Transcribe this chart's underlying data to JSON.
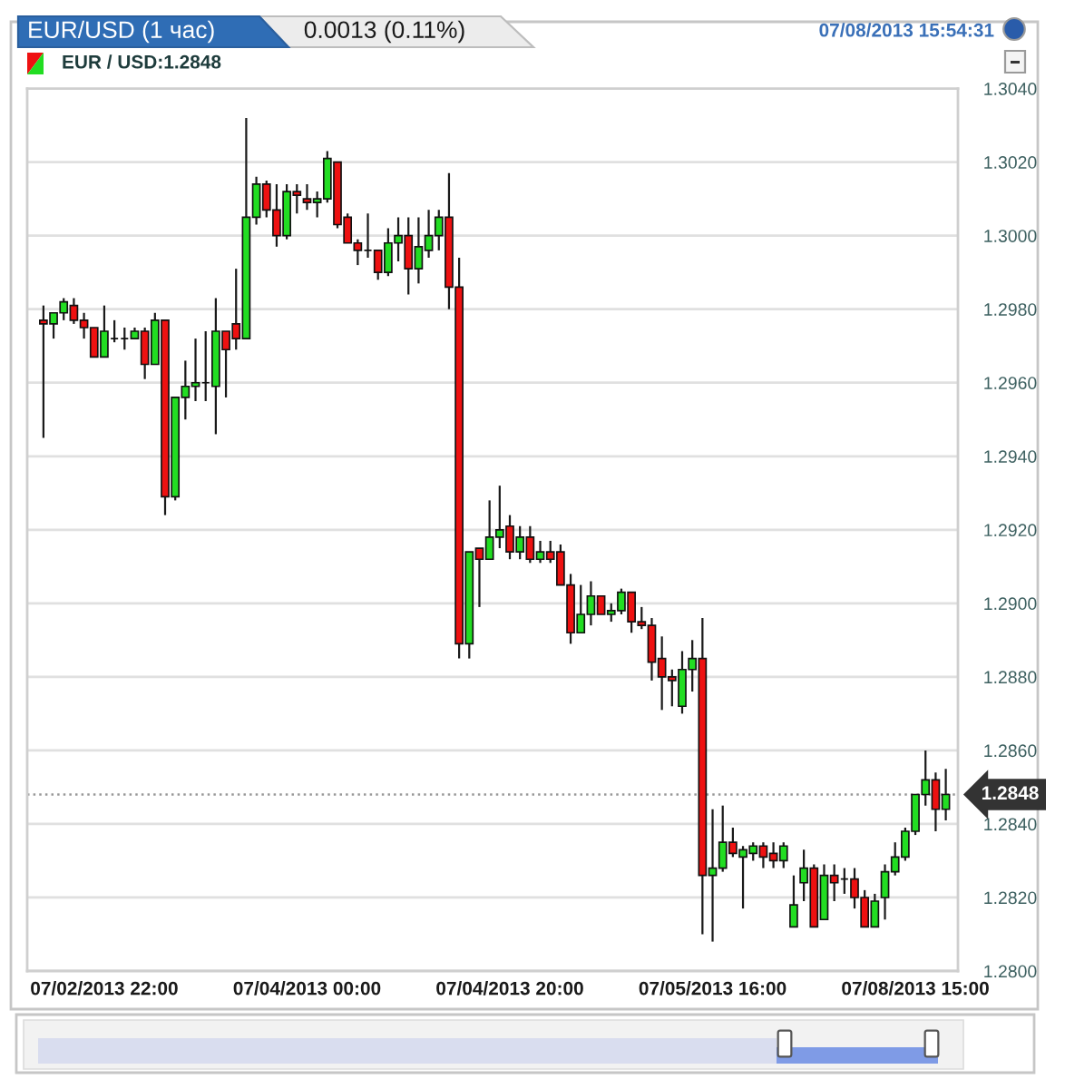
{
  "chart_data": {
    "type": "candlestick",
    "title": "EUR/USD (1 час)",
    "annotations": [
      "0.0013 (0.11%)",
      "07/08/2013 15:54:31",
      "EUR / USD:1.2848"
    ],
    "categories": [
      null,
      null,
      null,
      null,
      null,
      null,
      "07/02/2013 22:00",
      null,
      null,
      null,
      null,
      null,
      null,
      null,
      null,
      null,
      null,
      null,
      null,
      null,
      null,
      null,
      null,
      null,
      null,
      null,
      "07/04/2013 00:00",
      null,
      null,
      null,
      null,
      null,
      null,
      null,
      null,
      null,
      null,
      null,
      null,
      null,
      null,
      null,
      null,
      null,
      null,
      null,
      "07/04/2013 20:00",
      null,
      null,
      null,
      null,
      null,
      null,
      null,
      null,
      null,
      null,
      null,
      null,
      null,
      null,
      null,
      null,
      null,
      null,
      null,
      "07/05/2013 16:00",
      null,
      null,
      null,
      null,
      null,
      null,
      null,
      null,
      null,
      null,
      null,
      null,
      null,
      null,
      null,
      null,
      null,
      null,
      null,
      "07/08/2013 15:00",
      null,
      null,
      null
    ],
    "ohlc": [
      [
        1.2977,
        1.2981,
        1.2945,
        1.2976
      ],
      [
        1.2976,
        1.2979,
        1.2972,
        1.2979
      ],
      [
        1.2979,
        1.2983,
        1.2977,
        1.2982
      ],
      [
        1.2981,
        1.2983,
        1.2976,
        1.2977
      ],
      [
        1.2977,
        1.2979,
        1.2972,
        1.2975
      ],
      [
        1.2975,
        1.2975,
        1.2967,
        1.2967
      ],
      [
        1.2967,
        1.2981,
        1.2967,
        1.2974
      ],
      [
        1.2972,
        1.2977,
        1.2971,
        1.2972
      ],
      [
        1.2972,
        1.2975,
        1.2969,
        1.2972
      ],
      [
        1.2972,
        1.2975,
        1.2972,
        1.2974
      ],
      [
        1.2974,
        1.2975,
        1.2961,
        1.2965
      ],
      [
        1.2965,
        1.2979,
        1.2965,
        1.2977
      ],
      [
        1.2977,
        1.2977,
        1.2924,
        1.2929
      ],
      [
        1.2929,
        1.2956,
        1.2928,
        1.2956
      ],
      [
        1.2956,
        1.2966,
        1.295,
        1.2959
      ],
      [
        1.2959,
        1.2972,
        1.2955,
        1.296
      ],
      [
        1.296,
        1.2974,
        1.2955,
        1.296
      ],
      [
        1.2959,
        1.2983,
        1.2946,
        1.2974
      ],
      [
        1.2974,
        1.2974,
        1.2956,
        1.2969
      ],
      [
        1.2976,
        1.2991,
        1.2969,
        1.2972
      ],
      [
        1.2972,
        1.3032,
        1.2972,
        1.3005
      ],
      [
        1.3005,
        1.3016,
        1.3003,
        1.3014
      ],
      [
        1.3014,
        1.3015,
        1.3005,
        1.3007
      ],
      [
        1.3007,
        1.3014,
        1.2997,
        1.3
      ],
      [
        1.3,
        1.3014,
        1.2999,
        1.3012
      ],
      [
        1.3012,
        1.3014,
        1.3006,
        1.3011
      ],
      [
        1.301,
        1.3014,
        1.3007,
        1.3009
      ],
      [
        1.3009,
        1.3012,
        1.3005,
        1.301
      ],
      [
        1.301,
        1.3023,
        1.3009,
        1.3021
      ],
      [
        1.302,
        1.302,
        1.3002,
        1.3003
      ],
      [
        1.3005,
        1.3006,
        1.2998,
        1.2998
      ],
      [
        1.2998,
        1.2999,
        1.2992,
        1.2996
      ],
      [
        1.2996,
        1.3006,
        1.2994,
        1.2996
      ],
      [
        1.2996,
        1.2996,
        1.2988,
        1.299
      ],
      [
        1.299,
        1.3002,
        1.2989,
        1.2998
      ],
      [
        1.2998,
        1.3005,
        1.2993,
        1.3
      ],
      [
        1.3,
        1.3005,
        1.2984,
        1.2991
      ],
      [
        1.2991,
        1.3005,
        1.2987,
        1.2997
      ],
      [
        1.2996,
        1.3007,
        1.2994,
        1.3
      ],
      [
        1.3,
        1.3007,
        1.2996,
        1.3005
      ],
      [
        1.3005,
        1.3017,
        1.298,
        1.2986
      ],
      [
        1.2986,
        1.2994,
        1.2885,
        1.2889
      ],
      [
        1.2889,
        1.2914,
        1.2885,
        1.2914
      ],
      [
        1.2915,
        1.2915,
        1.2899,
        1.2912
      ],
      [
        1.2912,
        1.2928,
        1.2912,
        1.2918
      ],
      [
        1.2918,
        1.2932,
        1.2915,
        1.292
      ],
      [
        1.2921,
        1.2924,
        1.2912,
        1.2914
      ],
      [
        1.2914,
        1.2921,
        1.2912,
        1.2918
      ],
      [
        1.2918,
        1.2921,
        1.2911,
        1.2912
      ],
      [
        1.2912,
        1.2917,
        1.2911,
        1.2914
      ],
      [
        1.2914,
        1.2917,
        1.2911,
        1.2912
      ],
      [
        1.2914,
        1.2916,
        1.2905,
        1.2905
      ],
      [
        1.2905,
        1.2908,
        1.2889,
        1.2892
      ],
      [
        1.2892,
        1.2905,
        1.2892,
        1.2897
      ],
      [
        1.2897,
        1.2906,
        1.2894,
        1.2902
      ],
      [
        1.2902,
        1.2902,
        1.2897,
        1.2897
      ],
      [
        1.2897,
        1.29,
        1.2895,
        1.2898
      ],
      [
        1.2898,
        1.2904,
        1.2897,
        1.2903
      ],
      [
        1.2903,
        1.2903,
        1.2892,
        1.2895
      ],
      [
        1.2895,
        1.2899,
        1.2893,
        1.2894
      ],
      [
        1.2894,
        1.2896,
        1.2879,
        1.2884
      ],
      [
        1.2885,
        1.2891,
        1.2871,
        1.288
      ],
      [
        1.288,
        1.2882,
        1.2872,
        1.2879
      ],
      [
        1.2872,
        1.2887,
        1.287,
        1.2882
      ],
      [
        1.2882,
        1.289,
        1.2876,
        1.2885
      ],
      [
        1.2885,
        1.2896,
        1.281,
        1.2826
      ],
      [
        1.2826,
        1.2844,
        1.2808,
        1.2828
      ],
      [
        1.2828,
        1.2845,
        1.2827,
        1.2835
      ],
      [
        1.2835,
        1.2839,
        1.2831,
        1.2832
      ],
      [
        1.2831,
        1.2834,
        1.2817,
        1.2833
      ],
      [
        1.2832,
        1.2835,
        1.283,
        1.2834
      ],
      [
        1.2834,
        1.2835,
        1.2828,
        1.2831
      ],
      [
        1.2832,
        1.2835,
        1.2828,
        1.283
      ],
      [
        1.283,
        1.2835,
        1.2828,
        1.2834
      ],
      [
        1.2812,
        1.2826,
        1.2812,
        1.2818
      ],
      [
        1.2824,
        1.2833,
        1.2819,
        1.2828
      ],
      [
        1.2828,
        1.2829,
        1.2812,
        1.2812
      ],
      [
        1.2814,
        1.2829,
        1.2814,
        1.2826
      ],
      [
        1.2826,
        1.2829,
        1.2819,
        1.2824
      ],
      [
        1.2825,
        1.2828,
        1.2821,
        1.2825
      ],
      [
        1.2825,
        1.2828,
        1.2817,
        1.282
      ],
      [
        1.282,
        1.2822,
        1.2812,
        1.2812
      ],
      [
        1.2812,
        1.2821,
        1.2812,
        1.2819
      ],
      [
        1.282,
        1.2829,
        1.2814,
        1.2827
      ],
      [
        1.2827,
        1.2835,
        1.2826,
        1.2831
      ],
      [
        1.2831,
        1.2839,
        1.283,
        1.2838
      ],
      [
        1.2838,
        1.2848,
        1.2837,
        1.2848
      ],
      [
        1.2848,
        1.286,
        1.2845,
        1.2852
      ],
      [
        1.2852,
        1.2854,
        1.2838,
        1.2844
      ],
      [
        1.2844,
        1.2855,
        1.2841,
        1.2848
      ]
    ],
    "colors": [
      "#ee1111",
      "#22dd22",
      "#22dd22",
      "#ee1111",
      "#ee1111",
      "#ee1111",
      "#22dd22",
      "#111111",
      "#111111",
      "#22dd22",
      "#ee1111",
      "#22dd22",
      "#ee1111",
      "#22dd22",
      "#22dd22",
      "#22dd22",
      "#111111",
      "#22dd22",
      "#ee1111",
      "#ee1111",
      "#22dd22",
      "#22dd22",
      "#ee1111",
      "#ee1111",
      "#22dd22",
      "#ee1111",
      "#ee1111",
      "#22dd22",
      "#22dd22",
      "#ee1111",
      "#ee1111",
      "#ee1111",
      "#111111",
      "#ee1111",
      "#22dd22",
      "#22dd22",
      "#ee1111",
      "#22dd22",
      "#22dd22",
      "#22dd22",
      "#ee1111",
      "#ee1111",
      "#22dd22",
      "#ee1111",
      "#22dd22",
      "#22dd22",
      "#ee1111",
      "#22dd22",
      "#ee1111",
      "#22dd22",
      "#ee1111",
      "#ee1111",
      "#ee1111",
      "#22dd22",
      "#22dd22",
      "#ee1111",
      "#22dd22",
      "#22dd22",
      "#ee1111",
      "#ee1111",
      "#ee1111",
      "#ee1111",
      "#ee1111",
      "#22dd22",
      "#22dd22",
      "#ee1111",
      "#22dd22",
      "#22dd22",
      "#ee1111",
      "#22dd22",
      "#22dd22",
      "#ee1111",
      "#ee1111",
      "#22dd22",
      "#22dd22",
      "#22dd22",
      "#ee1111",
      "#22dd22",
      "#ee1111",
      "#111111",
      "#ee1111",
      "#ee1111",
      "#22dd22",
      "#22dd22",
      "#22dd22",
      "#22dd22",
      "#22dd22",
      "#22dd22",
      "#ee1111",
      "#22dd22"
    ],
    "ylim": [
      1.28,
      1.304
    ],
    "yticks": [
      {
        "value": 1.28,
        "label": "1.2800"
      },
      {
        "value": 1.282,
        "label": "1.2820"
      },
      {
        "value": 1.284,
        "label": "1.2840"
      },
      {
        "value": 1.286,
        "label": "1.2860"
      },
      {
        "value": 1.288,
        "label": "1.2880"
      },
      {
        "value": 1.29,
        "label": "1.2900"
      },
      {
        "value": 1.292,
        "label": "1.2920"
      },
      {
        "value": 1.294,
        "label": "1.2940"
      },
      {
        "value": 1.296,
        "label": "1.2960"
      },
      {
        "value": 1.298,
        "label": "1.2980"
      },
      {
        "value": 1.3,
        "label": "1.3000"
      },
      {
        "value": 1.302,
        "label": "1.3020"
      },
      {
        "value": 1.304,
        "label": "1.3040"
      }
    ],
    "grid": "y",
    "ref_lines": [
      {
        "axis": "y",
        "value": 1.2848,
        "label": "1.2848",
        "color": "#999999",
        "line_style": "dotted"
      }
    ]
  }
}
